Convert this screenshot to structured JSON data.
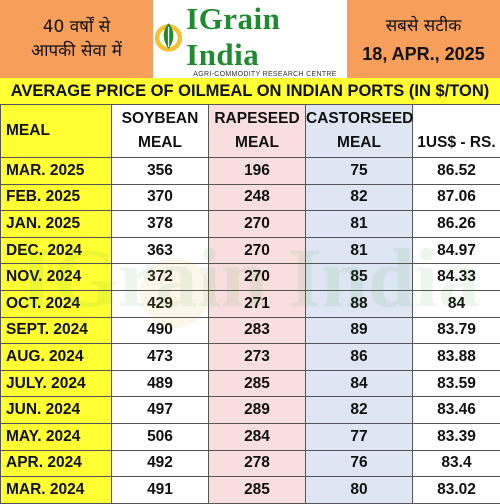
{
  "header": {
    "left_line1": "40 वर्षों से",
    "left_line2": "आपकी सेवा में",
    "logo_text": "IGrain India",
    "logo_subtitle": "AGRI-COMMODITY RESEARCH CENTRE",
    "right_line1": "सबसे सटीक",
    "right_date": "18, APR., 2025"
  },
  "title": "AVERAGE PRICE OF OILMEAL ON INDIAN PORTS (IN $/TON)",
  "columns": {
    "meal": "MEAL",
    "soy_l1": "SOYBEAN",
    "soy_l2": "MEAL",
    "rape_l1": "RAPESEED",
    "rape_l2": "MEAL",
    "castor_l1": "CASTORSEED",
    "castor_l2": "MEAL",
    "rate": "1US$ - RS."
  },
  "rows": [
    {
      "month": "MAR. 2025",
      "soybean": "356",
      "rapeseed": "196",
      "castorseed": "75",
      "rate": "86.52"
    },
    {
      "month": "FEB. 2025",
      "soybean": "370",
      "rapeseed": "248",
      "castorseed": "82",
      "rate": "87.06"
    },
    {
      "month": "JAN. 2025",
      "soybean": "378",
      "rapeseed": "270",
      "castorseed": "81",
      "rate": "86.26"
    },
    {
      "month": "DEC. 2024",
      "soybean": "363",
      "rapeseed": "270",
      "castorseed": "81",
      "rate": "84.97"
    },
    {
      "month": "NOV. 2024",
      "soybean": "372",
      "rapeseed": "270",
      "castorseed": "85",
      "rate": "84.33"
    },
    {
      "month": "OCT. 2024",
      "soybean": "429",
      "rapeseed": "271",
      "castorseed": "88",
      "rate": "84"
    },
    {
      "month": "SEPT. 2024",
      "soybean": "490",
      "rapeseed": "283",
      "castorseed": "89",
      "rate": "83.79"
    },
    {
      "month": "AUG. 2024",
      "soybean": "473",
      "rapeseed": "273",
      "castorseed": "86",
      "rate": "83.88"
    },
    {
      "month": "JULY. 2024",
      "soybean": "489",
      "rapeseed": "285",
      "castorseed": "84",
      "rate": "83.59"
    },
    {
      "month": "JUN. 2024",
      "soybean": "497",
      "rapeseed": "289",
      "castorseed": "82",
      "rate": "83.46"
    },
    {
      "month": "MAY. 2024",
      "soybean": "506",
      "rapeseed": "284",
      "castorseed": "77",
      "rate": "83.39"
    },
    {
      "month": "APR. 2024",
      "soybean": "492",
      "rapeseed": "278",
      "castorseed": "76",
      "rate": "83.4"
    },
    {
      "month": "MAR. 2024",
      "soybean": "491",
      "rapeseed": "285",
      "castorseed": "80",
      "rate": "83.02"
    }
  ],
  "watermark": "IGrain India",
  "colors": {
    "header_orange": "#f79e5a",
    "title_yellow": "#ffff33",
    "rapeseed_pink": "#f8dede",
    "castorseed_blue": "#dde6f2",
    "logo_green": "#1f8a2e"
  }
}
